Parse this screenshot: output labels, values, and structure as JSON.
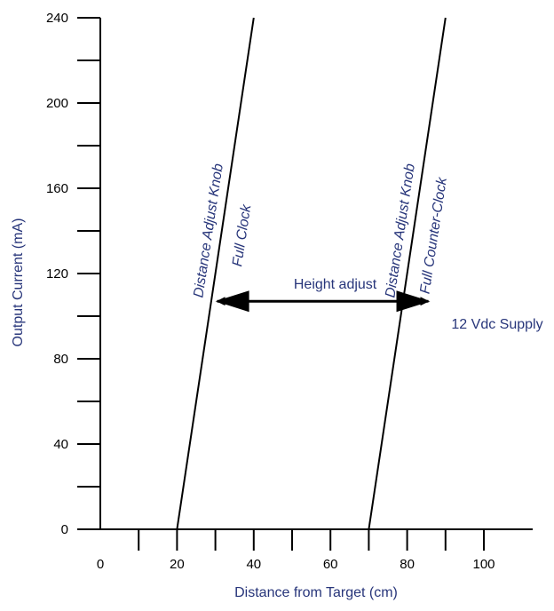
{
  "chart_data": {
    "type": "line",
    "xlabel": "Distance from Target (cm)",
    "ylabel": "Output Current (mA)",
    "xlim": [
      0,
      100
    ],
    "ylim": [
      0,
      240
    ],
    "x_ticks": [
      "0",
      "20",
      "40",
      "60",
      "80",
      "100"
    ],
    "y_ticks": [
      "0",
      "40",
      "80",
      "120",
      "160",
      "200",
      "240"
    ],
    "grid": false,
    "series": [
      {
        "name": "",
        "x": [
          20,
          40
        ],
        "y": [
          0,
          240
        ],
        "label_lines": [
          "Distance Adjust Knob",
          "Full Clock"
        ]
      },
      {
        "name": "",
        "x": [
          70,
          90
        ],
        "y": [
          0,
          240
        ],
        "label_lines": [
          "Distance Adjust Knob",
          "Full Counter-Clock"
        ]
      }
    ],
    "annotations": [
      {
        "text": "Height adjust",
        "x_from": 30,
        "x_to": 86,
        "y": 107
      },
      {
        "text": "12 Vdc Supply",
        "x": 100,
        "y": 80
      }
    ],
    "colors": {
      "line": "#000000",
      "text": "#27357a"
    }
  }
}
